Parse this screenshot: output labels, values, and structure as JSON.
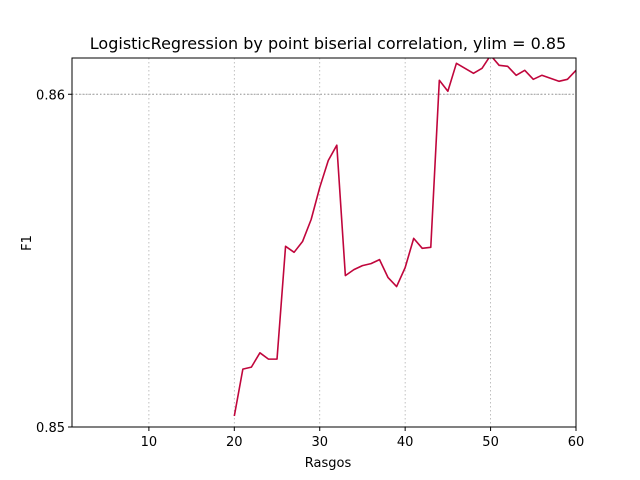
{
  "chart_data": {
    "type": "line",
    "title": "LogisticRegression by point biserial correlation, ylim = 0.85",
    "xlabel": "Rasgos",
    "ylabel": "F1",
    "xlim": [
      1,
      60
    ],
    "ylim": [
      0.85,
      0.86109
    ],
    "xticks": [
      10,
      20,
      30,
      40,
      50,
      60
    ],
    "xtick_labels": [
      "10",
      "20",
      "30",
      "40",
      "50",
      "60"
    ],
    "yticks": [
      0.85,
      0.86
    ],
    "ytick_labels": [
      "0.85",
      "0.86"
    ],
    "reference_line": 0.86,
    "grid": true,
    "series": [
      {
        "name": "",
        "color": "#c0063c",
        "x": [
          20,
          21,
          22,
          23,
          24,
          25,
          26,
          27,
          28,
          29,
          30,
          31,
          32,
          33,
          34,
          35,
          36,
          37,
          38,
          39,
          40,
          41,
          42,
          43,
          44,
          45,
          46,
          47,
          48,
          49,
          50,
          51,
          52,
          53,
          54,
          55,
          56,
          57,
          58,
          59,
          60
        ],
        "y": [
          0.85033,
          0.85174,
          0.8518,
          0.85223,
          0.85204,
          0.85204,
          0.85543,
          0.85525,
          0.85558,
          0.85624,
          0.8572,
          0.85801,
          0.85847,
          0.85455,
          0.85473,
          0.85485,
          0.85491,
          0.85503,
          0.85449,
          0.85422,
          0.85479,
          0.85567,
          0.85537,
          0.8554,
          0.86042,
          0.86009,
          0.86093,
          0.86078,
          0.86063,
          0.86078,
          0.86117,
          0.86087,
          0.86084,
          0.86057,
          0.86072,
          0.86045,
          0.86057,
          0.86048,
          0.86039,
          0.86045,
          0.86072
        ]
      }
    ]
  }
}
